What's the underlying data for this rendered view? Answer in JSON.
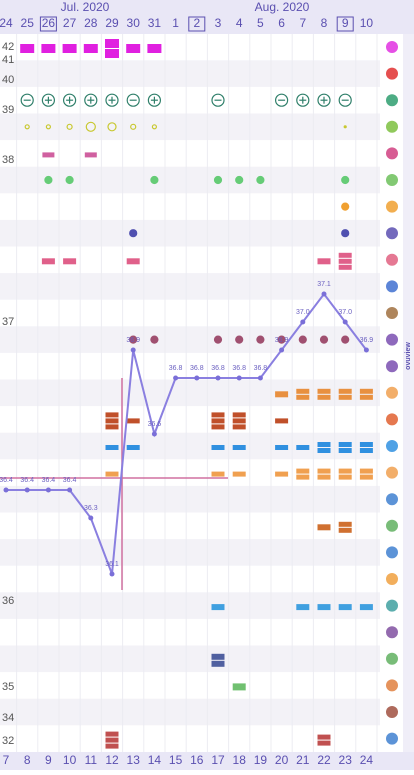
{
  "months": [
    "Jul. 2020",
    "Aug. 2020"
  ],
  "dates": [
    24,
    25,
    26,
    27,
    28,
    29,
    30,
    31,
    1,
    2,
    3,
    4,
    5,
    6,
    7,
    8,
    9,
    10
  ],
  "cycle_days": [
    7,
    8,
    9,
    10,
    11,
    12,
    13,
    14,
    15,
    16,
    17,
    18,
    19,
    20,
    21,
    22,
    23,
    24
  ],
  "axis_labels": [
    "42",
    "41",
    "40",
    "39",
    "38",
    "37",
    "36",
    "35",
    "34",
    "32"
  ],
  "temperatures": [
    36.4,
    36.4,
    36.4,
    36.4,
    36.3,
    36.1,
    36.9,
    36.6,
    36.8,
    36.8,
    36.8,
    36.8,
    36.8,
    36.9,
    37.0,
    37.1,
    37.0,
    36.9
  ],
  "temperature_labels": [
    "36.4",
    "36.4",
    "36.4",
    "36.4",
    "36.3",
    "36.1",
    "36.9",
    "36.6",
    "36.8",
    "36.8",
    "36.8",
    "36.8",
    "36.8",
    "36.9",
    "37.0",
    "37.1",
    "37.0",
    "36.9"
  ],
  "brand": "ovuview"
}
